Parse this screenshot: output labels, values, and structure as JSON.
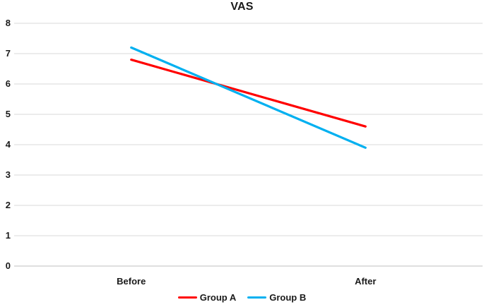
{
  "chart_data": {
    "type": "line",
    "title": "VAS",
    "categories": [
      "Before",
      "After"
    ],
    "series": [
      {
        "name": "Group A",
        "color": "#FF0000",
        "values": [
          6.8,
          4.6
        ]
      },
      {
        "name": "Group B",
        "color": "#00B0F0",
        "values": [
          7.2,
          3.9
        ]
      }
    ],
    "ylim": [
      0,
      8
    ],
    "ytick_step": 1,
    "yticks": [
      "0",
      "1",
      "2",
      "3",
      "4",
      "5",
      "6",
      "7",
      "8"
    ],
    "grid": true,
    "legend_position": "bottom"
  },
  "colors": {
    "gridline": "#DADADA",
    "axis_line": "#BFBFBF",
    "text": "#1A1A1A",
    "background": "#FFFFFF"
  }
}
